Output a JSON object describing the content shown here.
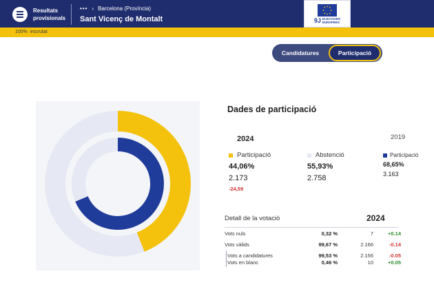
{
  "header": {
    "results_label": "Resultats provisionals",
    "breadcrumb_dots": "•••",
    "breadcrumb_province": "Barcelona (Província)",
    "municipality": "Sant Vicenç de Montalt",
    "logo": {
      "mark": "9J",
      "text_line1": "ELECCIONS",
      "text_line2": "EUROPEES"
    }
  },
  "progress": {
    "percent_label": "100%",
    "status": "escrutat"
  },
  "toggle": {
    "candidatures": "Candidatures",
    "participacio": "Participació",
    "active": "participacio"
  },
  "colors": {
    "navy": "#1f2d6e",
    "yellow": "#f4c20d",
    "blue": "#1f3c9b",
    "light": "#e6e9f3"
  },
  "panel": {
    "title": "Dades de participació",
    "year_current": "2024",
    "year_previous": "2019",
    "current": {
      "participation": {
        "label": "Participació",
        "percent": "44,06%",
        "count": "2.173",
        "diff": "-24,59"
      },
      "abstention": {
        "label": "Abstenció",
        "percent": "55,93%",
        "count": "2.758"
      }
    },
    "previous": {
      "participation": {
        "label": "Participació",
        "percent": "68,65%",
        "count": "3.163"
      }
    }
  },
  "detail": {
    "title": "Detall de la votació",
    "year": "2024",
    "rows": [
      {
        "label": "Vots nuls",
        "pct": "0,32 %",
        "num": "7",
        "diff": "+0.14"
      },
      {
        "label": "Vots vàlids",
        "pct": "99,67 %",
        "num": "2.166",
        "diff": "-0.14"
      },
      {
        "label": "Vots a candidatures",
        "pct": "99,53 %",
        "num": "2.156",
        "diff": "-0.05"
      },
      {
        "label": "Vots en blanc",
        "pct": "0,46 %",
        "num": "10",
        "diff": "+0.05"
      }
    ]
  },
  "chart_data": {
    "type": "pie",
    "rings": [
      {
        "name": "2024",
        "values": {
          "participation": 44.06,
          "abstention": 55.93
        }
      },
      {
        "name": "2019",
        "values": {
          "participation": 68.65,
          "abstention": 31.35
        }
      }
    ]
  }
}
